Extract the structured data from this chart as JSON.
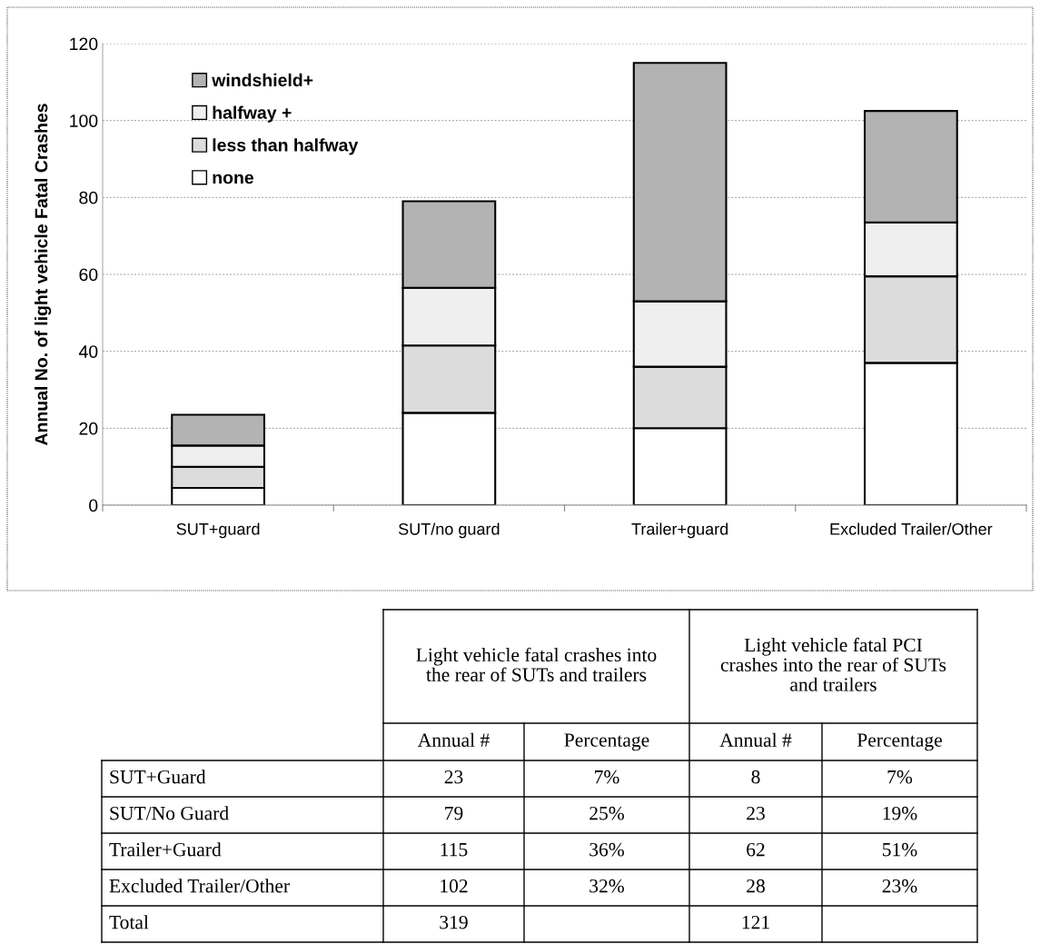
{
  "chart_data": [
    {
      "type": "bar",
      "stacked": true,
      "ylabel": "Annual No. of light vehicle Fatal Crashes",
      "categories": [
        "SUT+guard",
        "SUT/no guard",
        "Trailer+guard",
        "Excluded Trailer/Other"
      ],
      "series": [
        {
          "name": "none",
          "color": "#ffffff",
          "values": [
            4.5,
            24,
            20,
            37
          ]
        },
        {
          "name": "less than halfway",
          "color": "#dcdcdc",
          "values": [
            5.5,
            17.5,
            16,
            22.5
          ]
        },
        {
          "name": "halfway +",
          "color": "#efefef",
          "values": [
            5.5,
            15,
            17,
            14
          ]
        },
        {
          "name": "windshield+",
          "color": "#b3b3b3",
          "values": [
            8,
            22.5,
            62,
            29
          ]
        }
      ],
      "ylim": [
        0,
        120
      ],
      "yticks": [
        0,
        20,
        40,
        60,
        80,
        100,
        120
      ],
      "grid": "y",
      "legend": "top left"
    },
    {
      "type": "other",
      "annotations": [
        "Light vehicle fatal crashes into the rear of SUTs and trailers",
        "Light vehicle fatal PCI crashes into the rear of SUTs and trailers"
      ],
      "categories": [
        "Annual #",
        "Percentage",
        "Annual #",
        "Percentage"
      ],
      "y_categories": [
        "SUT+Guard",
        "SUT/No Guard",
        "Trailer+Guard",
        "Excluded Trailer/Other",
        "Total"
      ],
      "cell_labels": [
        [
          "23",
          "7%",
          "8",
          "7%"
        ],
        [
          "79",
          "25%",
          "23",
          "19%"
        ],
        [
          "115",
          "36%",
          "62",
          "51%"
        ],
        [
          "102",
          "32%",
          "28",
          "23%"
        ],
        [
          "319",
          null,
          "121",
          null
        ]
      ]
    }
  ]
}
